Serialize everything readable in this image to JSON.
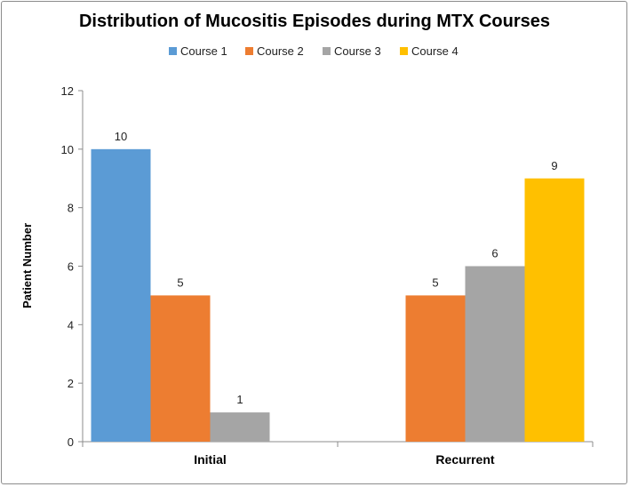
{
  "chart_data": {
    "type": "bar",
    "title": "Distribution of Mucositis Episodes during MTX Courses",
    "ylabel": "Patient Number",
    "xlabel": "",
    "categories": [
      "Initial",
      "Recurrent"
    ],
    "series": [
      {
        "name": "Course 1",
        "color": "#5B9BD5",
        "values": [
          10,
          null
        ]
      },
      {
        "name": "Course 2",
        "color": "#ED7D31",
        "values": [
          5,
          5
        ]
      },
      {
        "name": "Course 3",
        "color": "#A5A5A5",
        "values": [
          1,
          6
        ]
      },
      {
        "name": "Course 4",
        "color": "#FFC000",
        "values": [
          null,
          9
        ]
      }
    ],
    "ylim": [
      0,
      12
    ],
    "yticks": [
      0,
      2,
      4,
      6,
      8,
      10,
      12
    ],
    "grid": false,
    "legend": "top"
  }
}
